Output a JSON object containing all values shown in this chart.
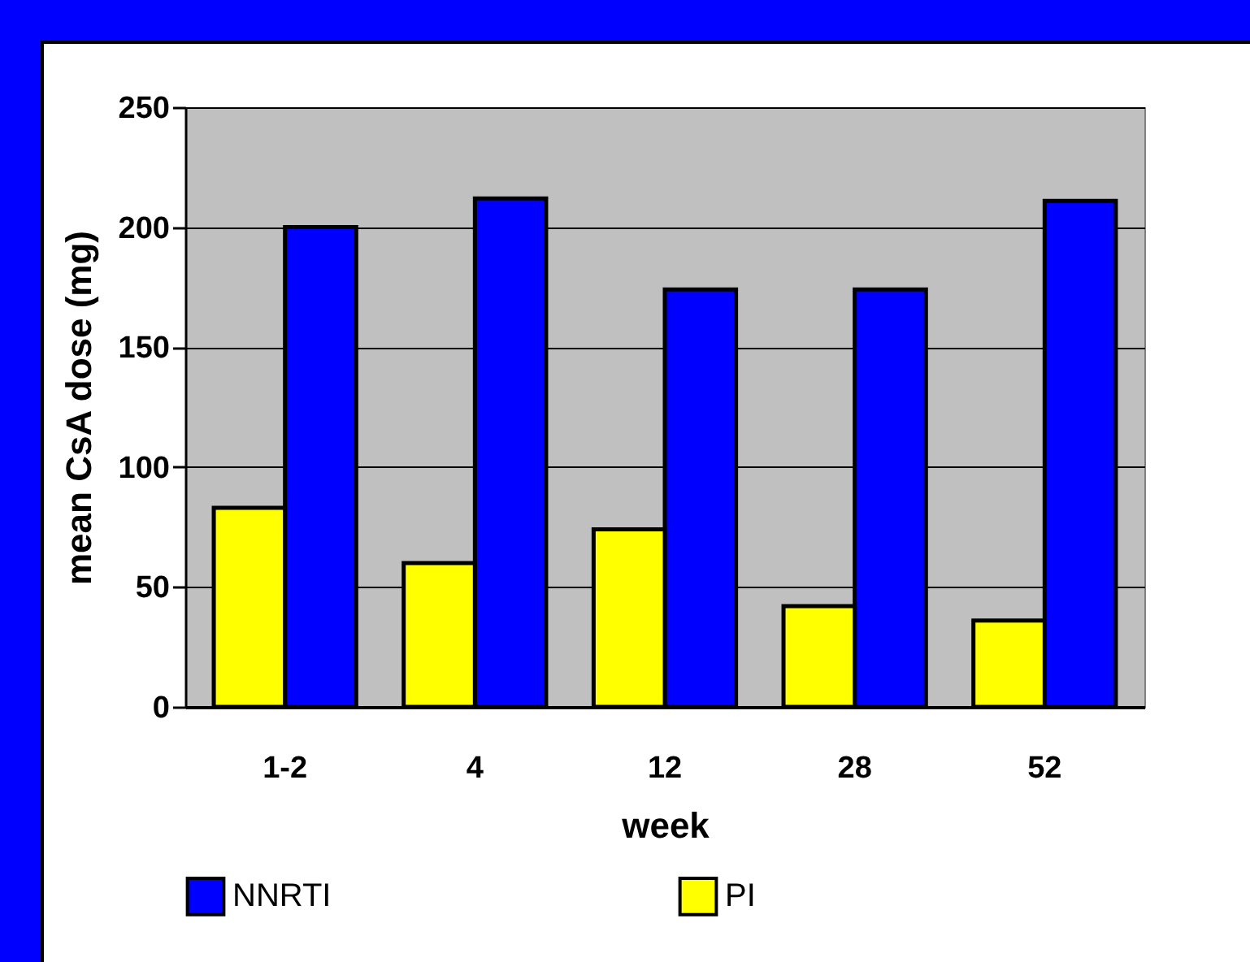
{
  "chart_data": {
    "type": "bar",
    "xlabel": "week",
    "ylabel": "mean CsA dose (mg)",
    "categories": [
      "1-2",
      "4",
      "12",
      "28",
      "52"
    ],
    "series": [
      {
        "name": "NNRTI",
        "color": "#0000ff",
        "values": [
          200,
          212,
          174,
          174,
          211
        ]
      },
      {
        "name": "PI",
        "color": "#ffff00",
        "values": [
          83,
          60,
          74,
          42,
          36
        ]
      }
    ],
    "ylim": [
      0,
      250
    ],
    "yticks": [
      0,
      50,
      100,
      150,
      200,
      250
    ],
    "grid": "y",
    "legend": "bottom"
  }
}
